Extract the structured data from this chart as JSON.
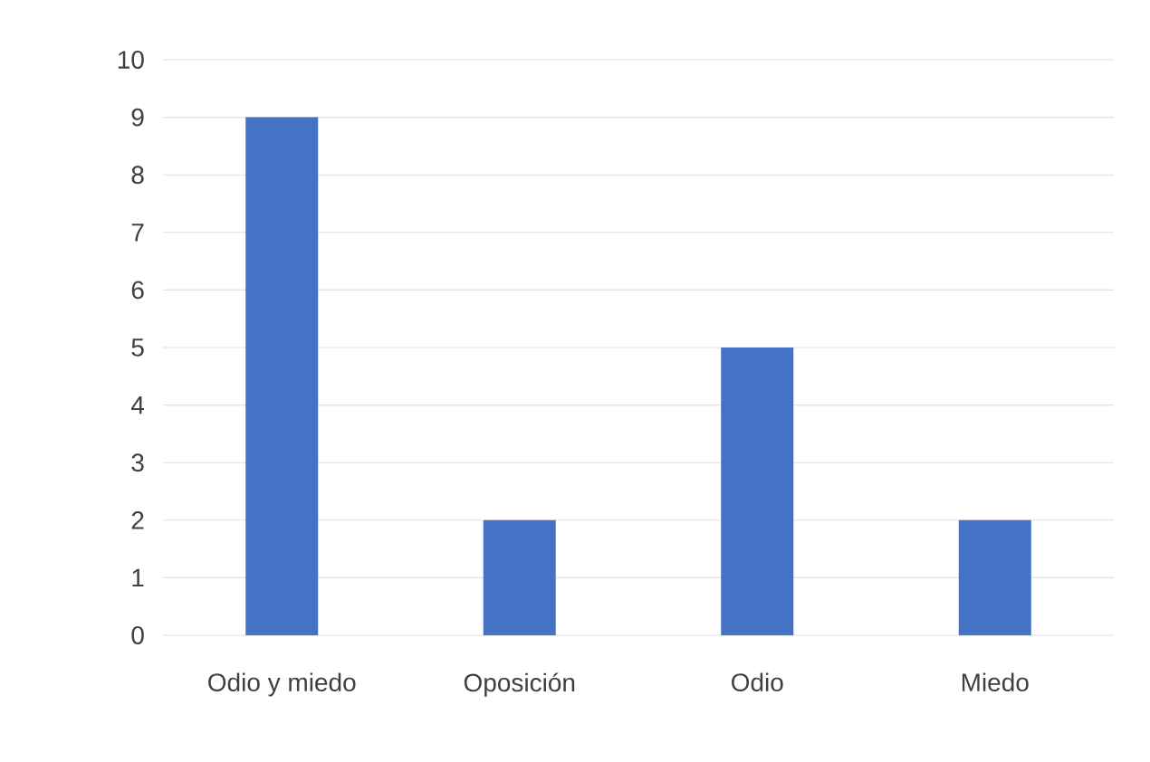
{
  "chart_data": {
    "type": "bar",
    "categories": [
      "Odio y miedo",
      "Oposición",
      "Odio",
      "Miedo"
    ],
    "values": [
      9,
      2,
      5,
      2
    ],
    "color": "#4472c4",
    "ylim": [
      0,
      10
    ],
    "yticks": [
      0,
      1,
      2,
      3,
      4,
      5,
      6,
      7,
      8,
      9,
      10
    ],
    "grid": "y"
  }
}
